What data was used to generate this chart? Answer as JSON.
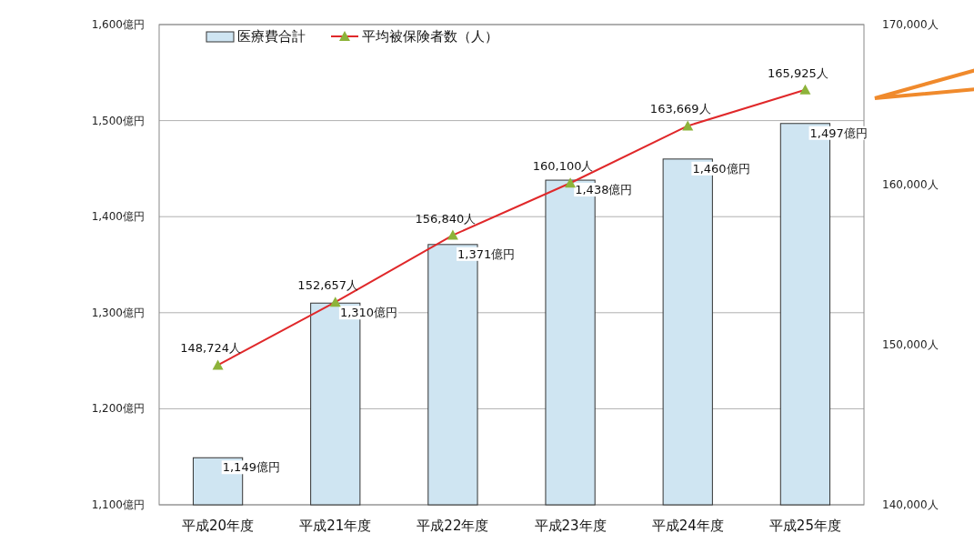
{
  "chart_data": {
    "type": "bar",
    "categories": [
      "平成20年度",
      "平成21年度",
      "平成22年度",
      "平成23年度",
      "平成24年度",
      "平成25年度"
    ],
    "series": [
      {
        "name": "医療費合計",
        "color": "#cfe5f2",
        "values": [
          1149,
          1310,
          1371,
          1438,
          1460,
          1497
        ],
        "value_labels": [
          "1,149億円",
          "1,310億円",
          "1,371億円",
          "1,438億円",
          "1,460億円",
          "1,497億円"
        ]
      },
      {
        "name": "平均被保険者数（人）",
        "type": "line",
        "axis": "y2",
        "color": "#e0282a",
        "marker": "triangle",
        "values": [
          148724,
          152657,
          156840,
          160100,
          163669,
          165925
        ],
        "value_labels": [
          "148,724人",
          "152,657人",
          "156,840人",
          "160,100人",
          "163,669人",
          "165,925人"
        ]
      }
    ],
    "ylim": [
      1100,
      1600
    ],
    "yticks": [
      {
        "value": 1100,
        "label": "1,100億円"
      },
      {
        "value": 1200,
        "label": "1,200億円"
      },
      {
        "value": 1300,
        "label": "1,300億円"
      },
      {
        "value": 1400,
        "label": "1,400億円"
      },
      {
        "value": 1500,
        "label": "1,500億円"
      },
      {
        "value": 1600,
        "label": "1,600億円"
      }
    ],
    "y2lim": [
      140000,
      170000
    ],
    "y2ticks": [
      {
        "value": 140000,
        "label": "140,000人"
      },
      {
        "value": 150000,
        "label": "150,000人"
      },
      {
        "value": 160000,
        "label": "160,000人"
      },
      {
        "value": 170000,
        "label": "170,000人"
      }
    ],
    "grid": "y",
    "legend": "top left"
  }
}
